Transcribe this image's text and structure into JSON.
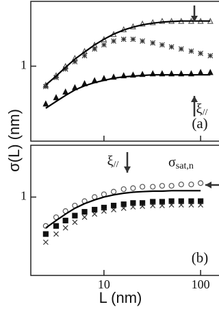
{
  "chart_data": [
    {
      "type": "scatter",
      "panel_label": "(a)",
      "y_label": "σ(L) (nm)",
      "log_x": true,
      "log_y": true,
      "xlim": [
        1.75,
        155
      ],
      "ylim": [
        0.27,
        3.1
      ],
      "yticks": [
        1
      ],
      "annotations": [
        {
          "text": "ξ",
          "sub": "//"
        }
      ],
      "series": [
        {
          "mode": "markers",
          "marker": "triangle-open",
          "color": "#555",
          "x": [
            2.5,
            3.2,
            4,
            5,
            6.3,
            8,
            10,
            12.6,
            16,
            20,
            25,
            32,
            40,
            50,
            63,
            80,
            100,
            126
          ],
          "values": [
            0.72,
            0.85,
            1.0,
            1.15,
            1.3,
            1.45,
            1.6,
            1.75,
            1.9,
            2.0,
            2.1,
            2.15,
            2.2,
            2.2,
            2.2,
            2.2,
            2.2,
            2.2
          ]
        },
        {
          "mode": "markers",
          "marker": "star",
          "color": "#333",
          "x": [
            2.5,
            3.2,
            4,
            5,
            6.3,
            8,
            10,
            12.6,
            16,
            20,
            25,
            32,
            40,
            50,
            63,
            80,
            100,
            126
          ],
          "values": [
            0.7,
            0.82,
            0.95,
            1.08,
            1.2,
            1.35,
            1.45,
            1.55,
            1.6,
            1.6,
            1.55,
            1.5,
            1.45,
            1.4,
            1.35,
            1.3,
            1.25,
            1.2
          ]
        },
        {
          "mode": "markers",
          "marker": "triangle-filled",
          "color": "#111",
          "x": [
            2.5,
            3.2,
            4,
            5,
            6.3,
            8,
            10,
            12.6,
            16,
            20,
            25,
            32,
            40,
            50,
            63,
            80,
            100,
            126
          ],
          "values": [
            0.52,
            0.58,
            0.64,
            0.69,
            0.74,
            0.78,
            0.81,
            0.83,
            0.85,
            0.86,
            0.87,
            0.88,
            0.88,
            0.88,
            0.88,
            0.88,
            0.9,
            0.9
          ]
        },
        {
          "mode": "line",
          "color": "#000",
          "x": [
            2.5,
            3.2,
            4,
            5,
            6.3,
            8,
            10,
            12.6,
            16,
            20,
            25,
            32,
            40,
            50,
            63,
            80,
            100,
            126
          ],
          "values": [
            0.72,
            0.84,
            0.98,
            1.13,
            1.28,
            1.45,
            1.6,
            1.75,
            1.88,
            1.98,
            2.06,
            2.12,
            2.16,
            2.18,
            2.2,
            2.2,
            2.2,
            2.2
          ]
        },
        {
          "mode": "line",
          "color": "#000",
          "x": [
            2.5,
            3.2,
            4,
            5,
            6.3,
            8,
            10,
            12.6,
            16,
            20,
            25,
            32,
            40,
            50,
            63,
            80,
            100,
            126
          ],
          "values": [
            0.48,
            0.54,
            0.6,
            0.66,
            0.71,
            0.75,
            0.78,
            0.81,
            0.83,
            0.84,
            0.85,
            0.86,
            0.86,
            0.86,
            0.86,
            0.86,
            0.86,
            0.86
          ]
        }
      ]
    },
    {
      "type": "scatter",
      "panel_label": "(b)",
      "x_label": "L (nm)",
      "log_x": true,
      "log_y": true,
      "xlim": [
        1.75,
        155
      ],
      "ylim": [
        0.25,
        2.5
      ],
      "xticks": [
        10,
        100
      ],
      "yticks": [
        1
      ],
      "annotations": [
        {
          "text": "ξ",
          "sub": "//"
        },
        {
          "text": "σ",
          "sub": "sat,n"
        }
      ],
      "series": [
        {
          "mode": "markers",
          "marker": "circle-open",
          "color": "#555",
          "x": [
            2.5,
            3.2,
            4,
            5,
            6.3,
            8,
            10,
            12.6,
            16,
            20,
            25,
            32,
            40,
            50,
            63,
            80,
            100
          ],
          "values": [
            0.6,
            0.7,
            0.78,
            0.86,
            0.93,
            1.0,
            1.05,
            1.1,
            1.15,
            1.17,
            1.2,
            1.2,
            1.22,
            1.22,
            1.25,
            1.25,
            1.28
          ]
        },
        {
          "mode": "markers",
          "marker": "square-filled",
          "color": "#111",
          "x": [
            2.5,
            3.2,
            4,
            5,
            6.3,
            8,
            10,
            12.6,
            16,
            20,
            25,
            32,
            40,
            50,
            63,
            80,
            100
          ],
          "values": [
            0.52,
            0.6,
            0.66,
            0.72,
            0.77,
            0.8,
            0.83,
            0.86,
            0.88,
            0.9,
            0.9,
            0.92,
            0.92,
            0.93,
            0.93,
            0.93,
            0.93
          ]
        },
        {
          "mode": "markers",
          "marker": "cross",
          "color": "#333",
          "x": [
            2.5,
            3.2,
            4,
            5,
            6.3,
            8,
            10,
            12.6,
            16,
            20,
            25,
            32,
            40,
            50,
            63,
            80,
            100
          ],
          "values": [
            0.45,
            0.52,
            0.58,
            0.64,
            0.7,
            0.74,
            0.78,
            0.8,
            0.82,
            0.84,
            0.85,
            0.86,
            0.86,
            0.87,
            0.87,
            0.87,
            0.87
          ]
        },
        {
          "mode": "line",
          "color": "#000",
          "x": [
            2.5,
            3.2,
            4,
            5,
            6.3,
            8,
            10,
            12.6,
            16,
            20,
            25,
            32,
            40,
            50,
            63,
            80,
            100
          ],
          "values": [
            0.58,
            0.66,
            0.74,
            0.82,
            0.89,
            0.95,
            1.0,
            1.04,
            1.07,
            1.09,
            1.1,
            1.11,
            1.11,
            1.12,
            1.12,
            1.12,
            1.12
          ]
        }
      ]
    }
  ]
}
